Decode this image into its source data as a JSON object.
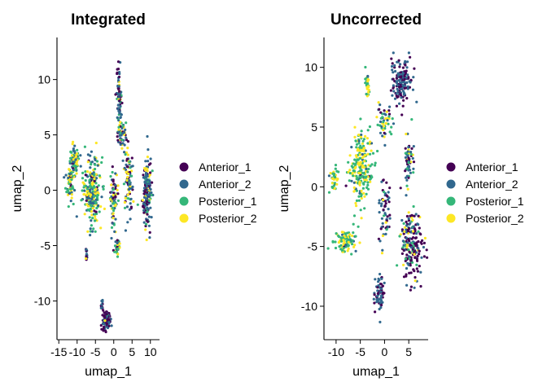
{
  "chart_data": [
    {
      "type": "scatter",
      "title": "Integrated",
      "xlabel": "umap_1",
      "ylabel": "umap_2",
      "xlim": [
        -15.5,
        12.5
      ],
      "ylim": [
        -13.5,
        13.8
      ],
      "xticks": [
        -15,
        -10,
        -5,
        0,
        5,
        10
      ],
      "yticks": [
        -10,
        -5,
        0,
        5,
        10
      ],
      "xtick_labels": [
        "-15",
        "-10",
        "-5",
        "0",
        "5",
        "10"
      ],
      "ytick_labels": [
        "-10",
        "-5",
        "0",
        "5",
        "10"
      ],
      "grid": false,
      "legend_position": "right",
      "series": [
        {
          "name": "Anterior_1",
          "color": "#440154"
        },
        {
          "name": "Anterior_2",
          "color": "#31688E"
        },
        {
          "name": "Posterior_1",
          "color": "#35B779"
        },
        {
          "name": "Posterior_2",
          "color": "#FDE725"
        }
      ],
      "clusters": [
        {
          "x": -6,
          "y": 0,
          "sx": 2.2,
          "sy": 2.8,
          "n": 240,
          "w": [
            0.05,
            0.25,
            0.35,
            0.35
          ]
        },
        {
          "x": -11,
          "y": 2.5,
          "sx": 1.1,
          "sy": 1.6,
          "n": 90,
          "w": [
            0.05,
            0.25,
            0.35,
            0.35
          ]
        },
        {
          "x": -12,
          "y": 0.5,
          "sx": 1.0,
          "sy": 1.2,
          "n": 60,
          "w": [
            0.05,
            0.25,
            0.35,
            0.35
          ]
        },
        {
          "x": 9,
          "y": 0,
          "sx": 1.1,
          "sy": 2.8,
          "n": 180,
          "w": [
            0.35,
            0.4,
            0.15,
            0.1
          ]
        },
        {
          "x": 4,
          "y": 1,
          "sx": 1.2,
          "sy": 2.5,
          "n": 90,
          "w": [
            0.2,
            0.4,
            0.2,
            0.2
          ]
        },
        {
          "x": 0,
          "y": -1,
          "sx": 1.0,
          "sy": 2.5,
          "n": 80,
          "w": [
            0.2,
            0.3,
            0.25,
            0.25
          ]
        },
        {
          "x": 1.5,
          "y": 8,
          "sx": 0.6,
          "sy": 3,
          "n": 90,
          "w": [
            0.3,
            0.5,
            0.1,
            0.1
          ]
        },
        {
          "x": 2.5,
          "y": 5,
          "sx": 1.0,
          "sy": 1,
          "n": 40,
          "w": [
            0.2,
            0.4,
            0.2,
            0.2
          ]
        },
        {
          "x": -2,
          "y": -11.8,
          "sx": 1.1,
          "sy": 0.8,
          "n": 90,
          "w": [
            0.6,
            0.35,
            0.03,
            0.02
          ]
        },
        {
          "x": -3.2,
          "y": -10.5,
          "sx": 0.2,
          "sy": 0.9,
          "n": 15,
          "w": [
            0.6,
            0.35,
            0.03,
            0.02
          ]
        },
        {
          "x": -7.5,
          "y": -5.7,
          "sx": 0.15,
          "sy": 0.6,
          "n": 15,
          "w": [
            0.3,
            0.6,
            0.05,
            0.05
          ]
        },
        {
          "x": 1,
          "y": -5.2,
          "sx": 0.7,
          "sy": 0.6,
          "n": 25,
          "w": [
            0.1,
            0.3,
            0.3,
            0.3
          ]
        }
      ]
    },
    {
      "type": "scatter",
      "title": "Uncorrected",
      "xlabel": "umap_1",
      "ylabel": "umap_2",
      "xlim": [
        -12.5,
        9
      ],
      "ylim": [
        -12.8,
        12.5
      ],
      "xticks": [
        -10,
        -5,
        0,
        5
      ],
      "yticks": [
        -10,
        -5,
        0,
        5,
        10
      ],
      "xtick_labels": [
        "-10",
        "-5",
        "0",
        "5"
      ],
      "ytick_labels": [
        "-10",
        "-5",
        "0",
        "5",
        "10"
      ],
      "grid": false,
      "legend_position": "right",
      "series": [
        {
          "name": "Anterior_1",
          "color": "#440154"
        },
        {
          "name": "Anterior_2",
          "color": "#31688E"
        },
        {
          "name": "Posterior_1",
          "color": "#35B779"
        },
        {
          "name": "Posterior_2",
          "color": "#FDE725"
        }
      ],
      "clusters": [
        {
          "x": -5,
          "y": 1.5,
          "sx": 2.2,
          "sy": 2.8,
          "n": 220,
          "w": [
            0.02,
            0.08,
            0.5,
            0.4
          ]
        },
        {
          "x": -8,
          "y": -4.5,
          "sx": 2.0,
          "sy": 0.8,
          "n": 90,
          "w": [
            0.02,
            0.08,
            0.5,
            0.4
          ]
        },
        {
          "x": -10.5,
          "y": 0.5,
          "sx": 0.7,
          "sy": 1.0,
          "n": 35,
          "w": [
            0.02,
            0.08,
            0.5,
            0.4
          ]
        },
        {
          "x": -3.5,
          "y": 8.5,
          "sx": 0.5,
          "sy": 1.0,
          "n": 30,
          "w": [
            0.02,
            0.08,
            0.5,
            0.4
          ]
        },
        {
          "x": 3.5,
          "y": 9,
          "sx": 2.0,
          "sy": 1.6,
          "n": 150,
          "w": [
            0.55,
            0.45,
            0,
            0
          ]
        },
        {
          "x": 5.5,
          "y": -5,
          "sx": 2.0,
          "sy": 2.5,
          "n": 190,
          "w": [
            0.45,
            0.35,
            0.12,
            0.08
          ]
        },
        {
          "x": -1,
          "y": -9,
          "sx": 1.0,
          "sy": 1.5,
          "n": 60,
          "w": [
            0.4,
            0.6,
            0,
            0
          ]
        },
        {
          "x": 0,
          "y": -2,
          "sx": 1.0,
          "sy": 2.5,
          "n": 60,
          "w": [
            0.35,
            0.5,
            0.1,
            0.05
          ]
        },
        {
          "x": 5,
          "y": 2,
          "sx": 0.8,
          "sy": 2.0,
          "n": 60,
          "w": [
            0.3,
            0.5,
            0.1,
            0.1
          ]
        },
        {
          "x": 0,
          "y": 5.5,
          "sx": 1.5,
          "sy": 1.2,
          "n": 50,
          "w": [
            0.1,
            0.3,
            0.35,
            0.25
          ]
        }
      ]
    }
  ]
}
